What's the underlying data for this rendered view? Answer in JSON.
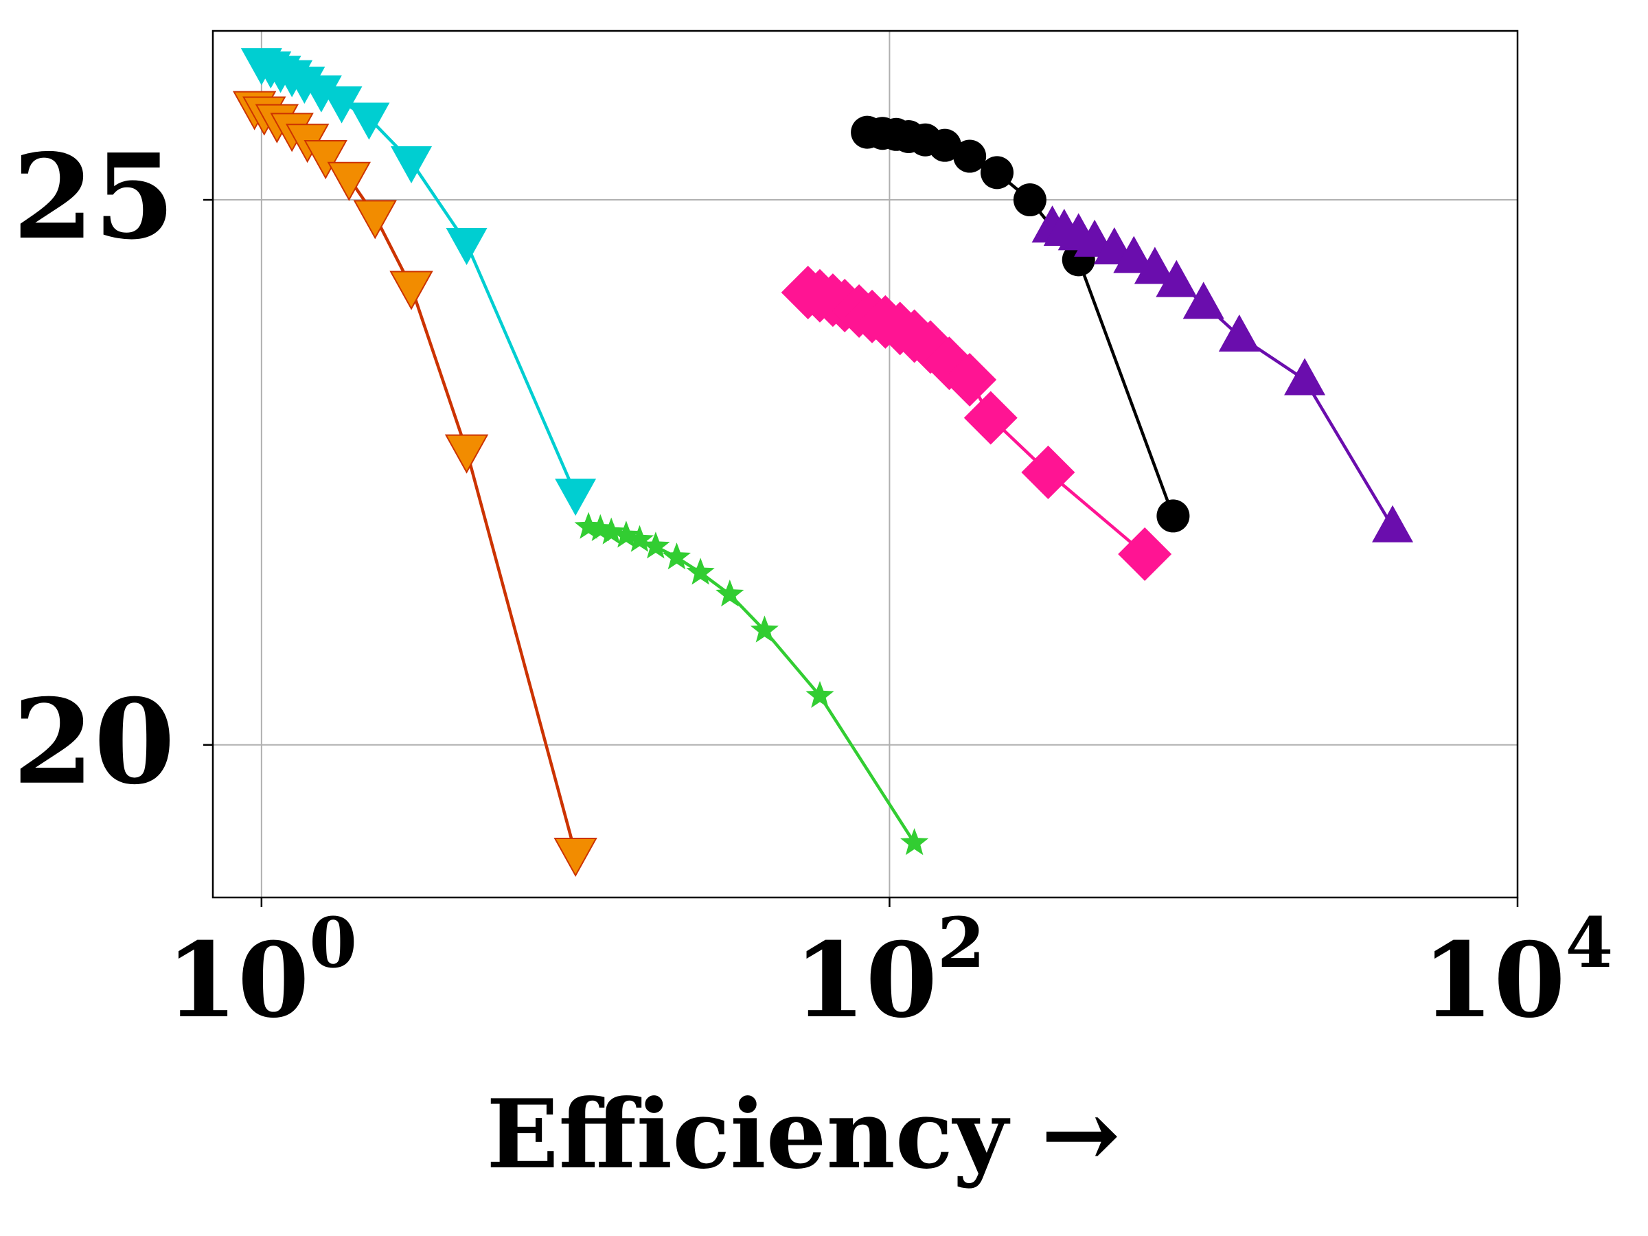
{
  "chart_data": {
    "type": "line",
    "xscale": "log",
    "xlabel": "Efficiency →",
    "ylabel": "",
    "xlim": [
      0.7,
      10000
    ],
    "ylim": [
      18.6,
      26.55
    ],
    "grid": true,
    "x_ticks": [
      {
        "value": 1,
        "base": "10",
        "exp": "0"
      },
      {
        "value": 100,
        "base": "10",
        "exp": "2"
      },
      {
        "value": 10000,
        "base": "10",
        "exp": "4"
      }
    ],
    "y_ticks": [
      {
        "value": 20,
        "label": "20"
      },
      {
        "value": 25,
        "label": "25"
      }
    ],
    "series": [
      {
        "marker": "triangle-down",
        "color": "#00CED1",
        "x": [
          1.0,
          1.07,
          1.15,
          1.25,
          1.37,
          1.55,
          1.8,
          2.2,
          3.0,
          4.5,
          10.0
        ],
        "y": [
          26.25,
          26.22,
          26.18,
          26.14,
          26.08,
          26.0,
          25.9,
          25.75,
          25.35,
          24.6,
          22.3
        ]
      },
      {
        "marker": "triangle-down",
        "color": "#F28C00",
        "edgecolor": "#CC3300",
        "x": [
          0.95,
          1.02,
          1.12,
          1.25,
          1.4,
          1.6,
          1.9,
          2.3,
          3.0,
          4.5,
          10.0
        ],
        "y": [
          25.85,
          25.8,
          25.73,
          25.65,
          25.55,
          25.4,
          25.2,
          24.85,
          24.2,
          22.7,
          19.0
        ]
      },
      {
        "marker": "star",
        "color": "#32CD32",
        "x": [
          11.0,
          12.0,
          13.0,
          14.5,
          16.0,
          18.0,
          21.0,
          25.0,
          31.0,
          40.0,
          60.0,
          120.0
        ],
        "y": [
          22.0,
          21.98,
          21.95,
          21.92,
          21.88,
          21.82,
          21.72,
          21.58,
          21.38,
          21.05,
          20.45,
          19.1
        ]
      },
      {
        "marker": "diamond",
        "color": "#FF1493",
        "x": [
          55.0,
          60.0,
          66.0,
          72.0,
          80.0,
          88.0,
          97.0,
          108.0,
          120.0,
          135.0,
          155.0,
          180.0,
          210.0,
          320.0,
          650.0
        ],
        "y": [
          24.15,
          24.12,
          24.08,
          24.03,
          23.98,
          23.93,
          23.88,
          23.82,
          23.75,
          23.65,
          23.5,
          23.35,
          23.0,
          22.5,
          21.75
        ]
      },
      {
        "marker": "circle",
        "color": "#000000",
        "x": [
          85.0,
          95.0,
          105.0,
          115.0,
          130.0,
          150.0,
          180.0,
          220.0,
          280.0,
          400.0,
          800.0
        ],
        "y": [
          25.62,
          25.61,
          25.6,
          25.58,
          25.55,
          25.5,
          25.4,
          25.25,
          25.0,
          24.45,
          22.1
        ]
      },
      {
        "marker": "triangle-up",
        "color": "#6A0DAD",
        "x": [
          330.0,
          360.0,
          400.0,
          450.0,
          520.0,
          600.0,
          700.0,
          820.0,
          1000.0,
          1300.0,
          2100.0,
          4000.0
        ],
        "y": [
          24.75,
          24.72,
          24.68,
          24.62,
          24.55,
          24.47,
          24.37,
          24.25,
          24.05,
          23.75,
          23.35,
          22.0
        ]
      }
    ]
  }
}
